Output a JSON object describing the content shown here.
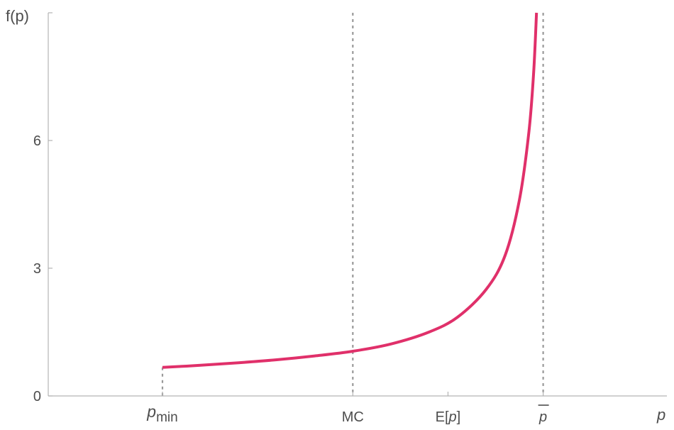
{
  "chart_data": {
    "type": "line",
    "title": "",
    "xlabel": "p",
    "ylabel": "f(p)",
    "xlim": [
      0,
      6.5
    ],
    "ylim": [
      0,
      9
    ],
    "y_ticks": [
      {
        "value": 0,
        "label": "0"
      },
      {
        "value": 3,
        "label": "3"
      },
      {
        "value": 6,
        "label": "6"
      }
    ],
    "x_ticks": [
      {
        "value": 1.2,
        "label": "p",
        "sub": "min",
        "italic": true
      },
      {
        "value": 3.2,
        "label": "MC"
      },
      {
        "value": 4.2,
        "label": "E[",
        "italic_part": "p",
        "suffix": "]"
      },
      {
        "value": 5.2,
        "label": "p",
        "overline": true,
        "italic": true
      }
    ],
    "reference_lines": [
      {
        "x": 1.2,
        "y_top": 0.67
      },
      {
        "x": 3.2,
        "y_top": 9
      },
      {
        "x": 5.2,
        "y_top": 9
      }
    ],
    "series": [
      {
        "color": "#e0306a",
        "x": [
          1.2,
          1.6,
          2.0,
          2.4,
          2.8,
          3.2,
          3.6,
          4.0,
          4.3,
          4.6,
          4.8,
          4.95,
          5.05,
          5.1,
          5.13
        ],
        "y": [
          0.67,
          0.72,
          0.78,
          0.85,
          0.94,
          1.05,
          1.22,
          1.5,
          1.85,
          2.5,
          3.3,
          4.6,
          6.2,
          7.6,
          9.0
        ]
      }
    ],
    "grid": false,
    "legend": "none"
  }
}
